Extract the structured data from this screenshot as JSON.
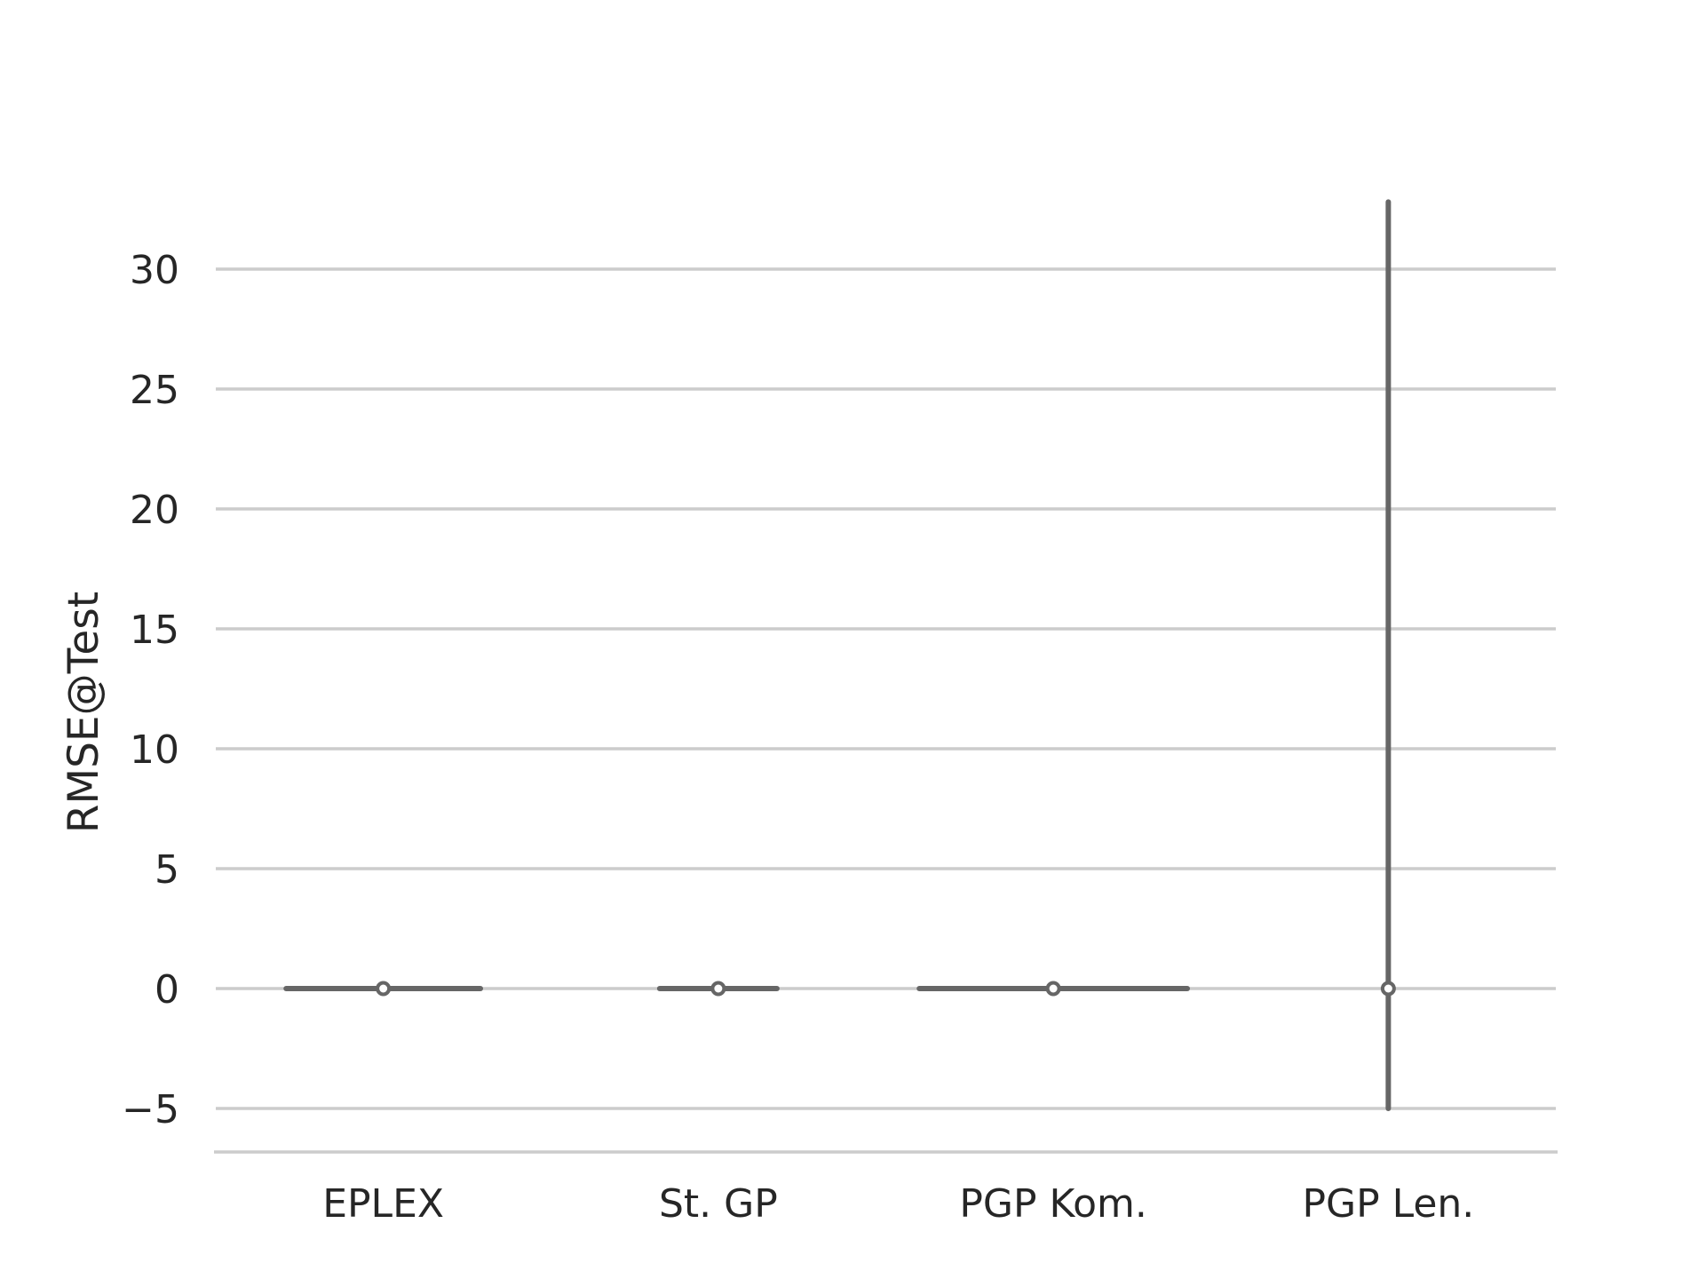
{
  "chart_data": {
    "type": "violin",
    "title": "",
    "xlabel": "",
    "ylabel": "RMSE@Test",
    "ylim": [
      -7,
      33
    ],
    "yticks": [
      -5,
      0,
      5,
      10,
      15,
      20,
      25,
      30
    ],
    "ytick_labels": [
      "−5",
      "0",
      "5",
      "10",
      "15",
      "20",
      "25",
      "30"
    ],
    "grid": true,
    "categories": [
      "EPLEX",
      "St. GP",
      "PGP Kom.",
      "PGP Len."
    ],
    "series": [
      {
        "name": "EPLEX",
        "median": 0.0,
        "min": 0.0,
        "max": 0.05,
        "half_width": 0.58
      },
      {
        "name": "St. GP",
        "median": 0.0,
        "min": 0.0,
        "max": 0.05,
        "half_width": 0.35
      },
      {
        "name": "PGP Kom.",
        "median": 0.0,
        "min": 0.0,
        "max": 0.05,
        "half_width": 0.8
      },
      {
        "name": "PGP Len.",
        "median": 0.0,
        "min": -5.0,
        "max": 32.8,
        "half_width": 0.0
      }
    ],
    "colors": {
      "line": "#666666",
      "grid": "#cccccc",
      "text": "#262626",
      "dot_fill": "#ffffff"
    }
  }
}
